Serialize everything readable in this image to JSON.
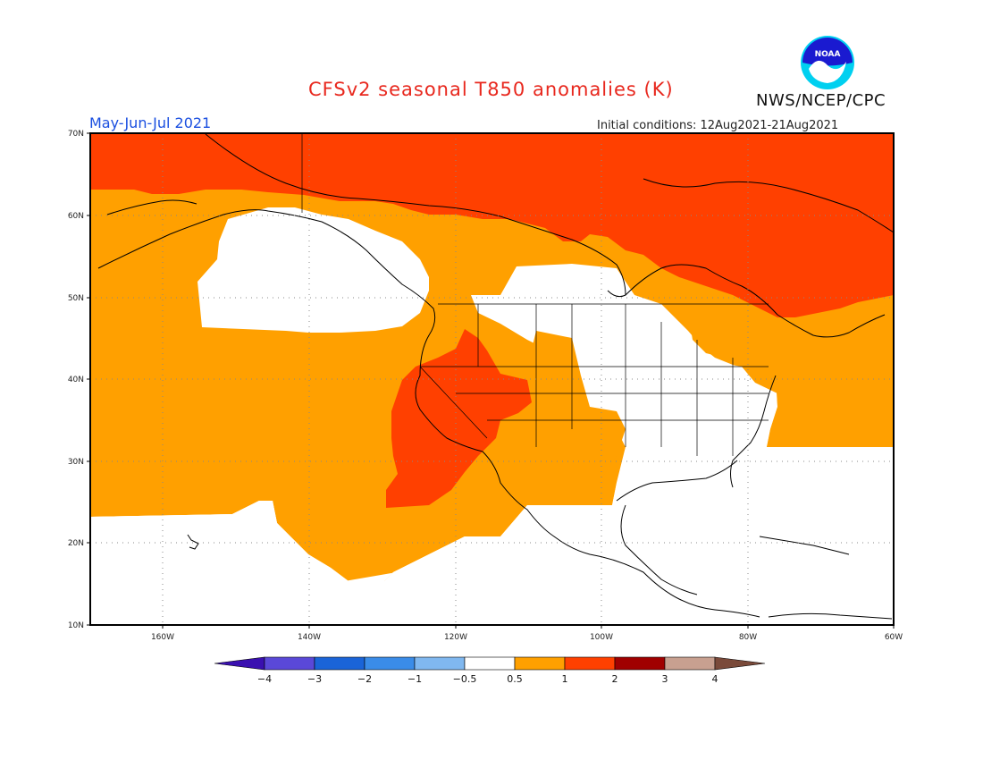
{
  "header": {
    "title": "CFSv2 seasonal T850 anomalies (K)",
    "agency": "NWS/NCEP/CPC",
    "logo_text": "NOAA",
    "season": "May-Jun-Jul 2021",
    "initial_conditions": "Initial conditions: 12Aug2021-21Aug2021"
  },
  "map": {
    "lon_range": [
      -170,
      -60
    ],
    "lat_range": [
      10,
      70
    ],
    "lat_ticks": [
      "70N",
      "60N",
      "50N",
      "40N",
      "30N",
      "20N",
      "10N"
    ],
    "lon_ticks": [
      "160W",
      "140W",
      "120W",
      "100W",
      "80W",
      "60W"
    ],
    "gridlines": "dotted",
    "anomaly_categories": [
      {
        "label": "0.5 to 1 K",
        "color": "#ffa000"
      },
      {
        "label": "1 to 2 K",
        "color": "#ff4000"
      }
    ]
  },
  "colorbar": {
    "labels": [
      "-4",
      "-3",
      "-2",
      "-1",
      "-0.5",
      "0.5",
      "1",
      "2",
      "3",
      "4"
    ],
    "colors": [
      "#3a10b0",
      "#5a48d8",
      "#1a64d8",
      "#3a8ce8",
      "#80b8f0",
      "#ffffff",
      "#ffa000",
      "#ff4000",
      "#a00000",
      "#c8a090",
      "#7a4a3a"
    ]
  }
}
